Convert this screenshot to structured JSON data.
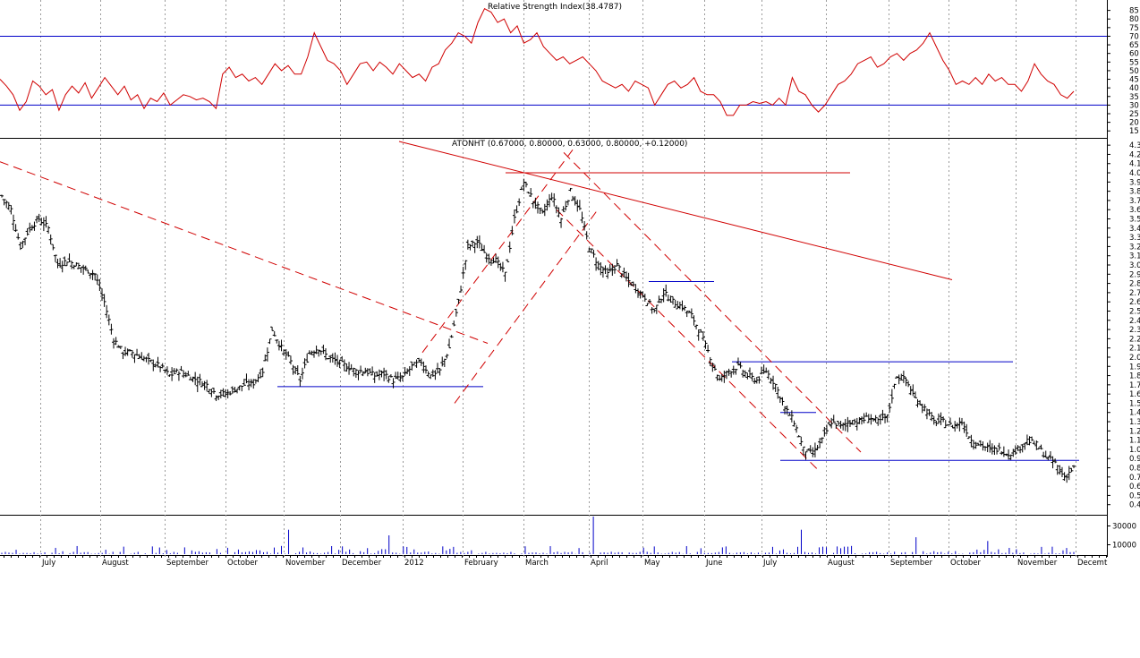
{
  "chart_data": [
    {
      "type": "line",
      "title": "Relative Strength Index(38.4787)",
      "ylim": [
        12,
        90
      ],
      "yticks": [
        85,
        80,
        75,
        70,
        65,
        60,
        55,
        50,
        45,
        40,
        35,
        30,
        25,
        20,
        15
      ],
      "reference_lines": [
        70,
        30
      ],
      "series": [
        {
          "values": [
            45,
            41,
            36,
            27,
            32,
            44,
            41,
            36,
            39,
            27,
            36,
            41,
            37,
            43,
            34,
            40,
            46,
            41,
            36,
            41,
            33,
            36,
            28,
            34,
            32,
            37,
            30,
            33,
            36,
            35,
            33,
            34,
            32,
            28,
            48,
            52,
            46,
            48,
            44,
            46,
            42,
            48,
            54,
            50,
            53,
            48,
            48,
            58,
            72,
            64,
            56,
            54,
            50,
            42,
            48,
            54,
            55,
            50,
            55,
            52,
            48,
            54,
            50,
            46,
            48,
            44,
            52,
            54,
            62,
            66,
            72,
            70,
            66,
            78,
            86,
            84,
            78,
            80,
            72,
            76,
            66,
            68,
            72,
            64,
            60,
            56,
            58,
            54,
            56,
            58,
            54,
            50,
            44,
            42,
            40,
            42,
            38,
            44,
            42,
            40,
            30,
            36,
            42,
            44,
            40,
            42,
            46,
            38,
            36,
            36,
            32,
            24,
            24,
            30,
            30,
            32,
            31,
            32,
            30,
            34,
            30,
            46,
            38,
            36,
            30,
            26,
            30,
            36,
            42,
            44,
            48,
            54,
            56,
            58,
            52,
            54,
            58,
            60,
            56,
            60,
            62,
            66,
            72,
            64,
            56,
            50,
            42,
            44,
            42,
            46,
            42,
            48,
            44,
            46,
            42,
            42,
            38,
            44,
            54,
            48,
            44,
            42,
            36,
            34,
            38
          ]
        }
      ]
    },
    {
      "type": "candlestick",
      "title": "ATONHT (0.67000, 0.80000, 0.63000, 0.80000, +0.12000)",
      "ylim": [
        0.3,
        4.35
      ],
      "yticks": [
        4.3,
        4.2,
        4.1,
        4.0,
        3.9,
        3.8,
        3.7,
        3.6,
        3.5,
        3.4,
        3.3,
        3.2,
        3.1,
        3.0,
        2.9,
        2.8,
        2.7,
        2.6,
        2.5,
        2.4,
        2.3,
        2.2,
        2.1,
        2.0,
        1.9,
        1.8,
        1.7,
        1.6,
        1.5,
        1.4,
        1.3,
        1.2,
        1.1,
        1.0,
        0.9,
        0.8,
        0.7,
        0.6,
        0.5,
        0.4
      ],
      "close_points": [
        3.75,
        3.6,
        3.2,
        3.4,
        3.5,
        3.4,
        3.0,
        3.05,
        3.0,
        2.95,
        2.9,
        2.6,
        2.2,
        2.05,
        2.05,
        2.0,
        1.95,
        1.9,
        1.8,
        1.85,
        1.8,
        1.75,
        1.7,
        1.6,
        1.6,
        1.65,
        1.7,
        1.72,
        1.85,
        2.3,
        2.1,
        1.95,
        1.75,
        2.05,
        2.1,
        2.0,
        1.95,
        1.9,
        1.85,
        1.85,
        1.8,
        1.82,
        1.75,
        1.78,
        1.9,
        1.95,
        1.8,
        1.85,
        2.1,
        2.6,
        3.2,
        3.25,
        3.1,
        3.05,
        2.9,
        3.5,
        3.9,
        3.7,
        3.55,
        3.75,
        3.5,
        3.8,
        3.6,
        3.2,
        3.0,
        2.9,
        3.0,
        2.85,
        2.75,
        2.65,
        2.5,
        2.7,
        2.6,
        2.55,
        2.45,
        2.25,
        2.0,
        1.75,
        1.85,
        1.9,
        1.8,
        1.75,
        1.85,
        1.7,
        1.45,
        1.3,
        1.0,
        0.95,
        1.1,
        1.3,
        1.25,
        1.3,
        1.3,
        1.35,
        1.3,
        1.35,
        1.8,
        1.75,
        1.55,
        1.45,
        1.3,
        1.3,
        1.25,
        1.3,
        1.1,
        1.05,
        1.0,
        1.0,
        0.95,
        1.0,
        1.1,
        1.05,
        0.92,
        0.85,
        0.7,
        0.8
      ],
      "lines": [
        {
          "style": "dashed",
          "from_close": [
            4.3,
            0
          ],
          "to_close": [
            2.1,
            0.44
          ]
        },
        {
          "style": "solid",
          "from_close": [
            4.34,
            0.35
          ],
          "to_close": [
            2.85,
            0.83
          ]
        }
      ],
      "levels": [
        4.0,
        2.82,
        1.95,
        1.68,
        1.4,
        0.88
      ]
    },
    {
      "type": "bar",
      "title": "",
      "yticks": [
        30000,
        10000
      ],
      "ylim": [
        0,
        40000
      ]
    }
  ],
  "x_axis": {
    "labels": [
      "July",
      "August",
      "September",
      "October",
      "November",
      "December",
      "2012",
      "February",
      "March",
      "April",
      "May",
      "June",
      "July",
      "August",
      "September",
      "October",
      "November",
      "Decemt"
    ]
  }
}
